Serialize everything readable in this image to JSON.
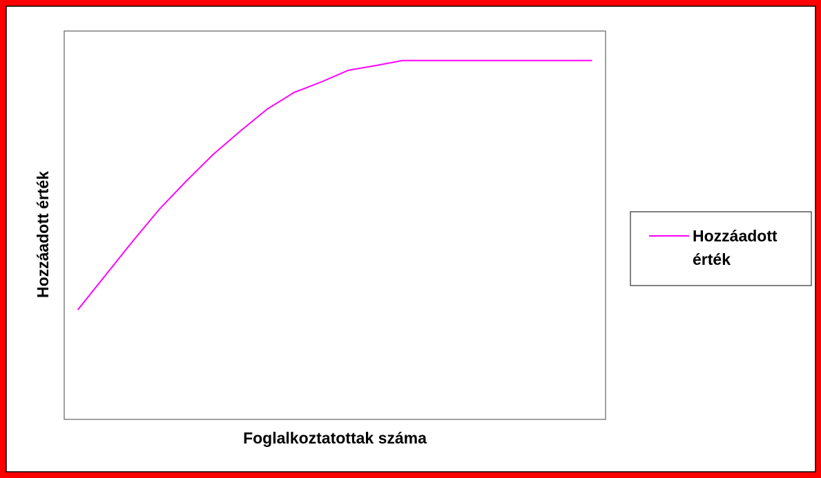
{
  "chart_data": {
    "type": "line",
    "x_label": "Foglalkoztatottak száma",
    "y_label": "Hozzáadott érték",
    "categories": [
      null,
      null,
      null,
      null,
      null,
      null,
      null,
      null,
      null,
      null,
      null,
      null,
      null,
      null,
      null,
      null,
      null,
      null,
      null,
      null
    ],
    "series": [
      {
        "name": "Hozzáadott érték",
        "color": "#ff00ff",
        "values": [
          28.2,
          36.9,
          45.6,
          54.0,
          61.3,
          68.2,
          74.2,
          79.9,
          84.2,
          86.9,
          89.9,
          91.1,
          92.4,
          92.4,
          92.4,
          92.4,
          92.4,
          92.4,
          92.4,
          92.4
        ]
      }
    ],
    "ylim": [
      0,
      100
    ],
    "yticks": [],
    "legend": "right",
    "grid": false
  }
}
